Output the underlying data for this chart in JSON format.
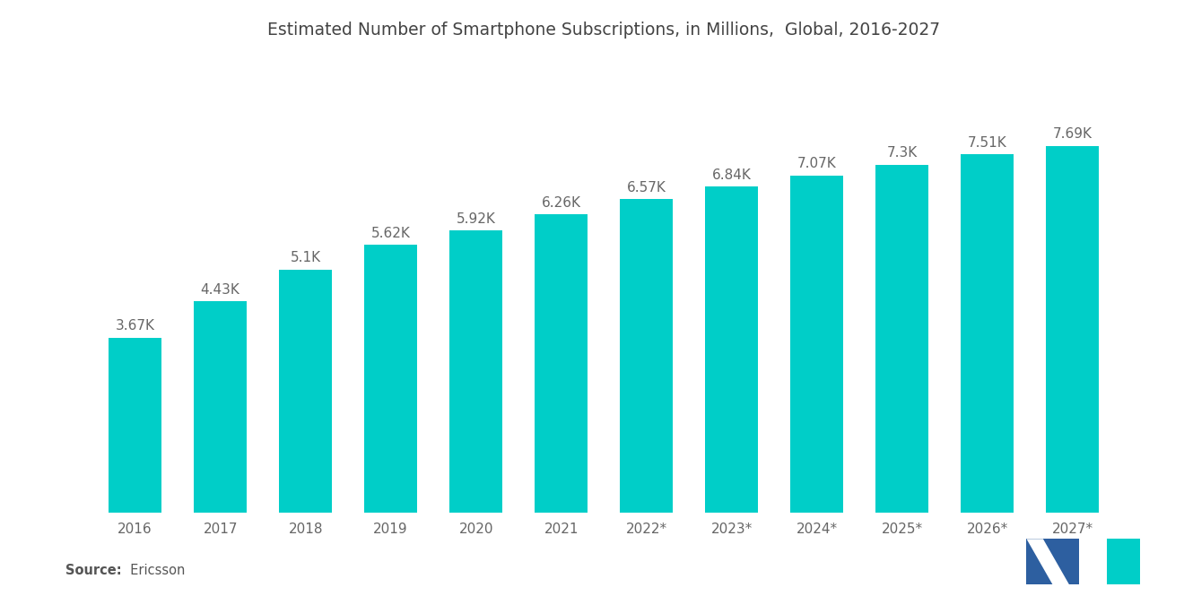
{
  "title": "Estimated Number of Smartphone Subscriptions, in Millions,  Global, 2016-2027",
  "categories": [
    "2016",
    "2017",
    "2018",
    "2019",
    "2020",
    "2021",
    "2022*",
    "2023*",
    "2024*",
    "2025*",
    "2026*",
    "2027*"
  ],
  "values": [
    3670,
    4430,
    5100,
    5620,
    5920,
    6260,
    6570,
    6840,
    7070,
    7300,
    7510,
    7690
  ],
  "labels": [
    "3.67K",
    "4.43K",
    "5.1K",
    "5.62K",
    "5.92K",
    "6.26K",
    "6.57K",
    "6.84K",
    "7.07K",
    "7.3K",
    "7.51K",
    "7.69K"
  ],
  "bar_color": "#00CEC8",
  "background_color": "#ffffff",
  "title_fontsize": 13.5,
  "label_fontsize": 11,
  "tick_fontsize": 11,
  "source_bold": "Source:",
  "source_normal": "  Ericsson",
  "ylim": [
    0,
    9500
  ]
}
